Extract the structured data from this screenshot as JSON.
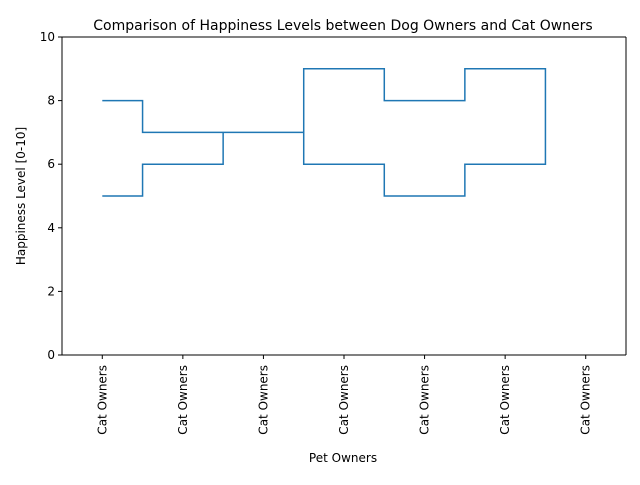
{
  "chart_data": {
    "type": "line",
    "drawstyle": "steps-mid",
    "title": "Comparison of Happiness Levels between Dog Owners and Cat Owners",
    "xlabel": "Pet Owners",
    "ylabel": "Happiness Level [0-10]",
    "ylim": [
      0,
      10
    ],
    "yticks": [
      0,
      2,
      4,
      6,
      8,
      10
    ],
    "xtick_labels": [
      "Cat Owners",
      "Cat Owners",
      "Cat Owners",
      "Cat Owners",
      "Cat Owners",
      "Cat Owners",
      "Cat Owners"
    ],
    "xtick_rotation": 90,
    "grid": false,
    "legend": "none",
    "series": [
      {
        "color": "#1f77b4",
        "x": [
          0,
          1,
          2,
          3,
          4,
          5,
          6,
          5,
          4,
          3,
          2,
          1,
          0
        ],
        "values": [
          5,
          6,
          7,
          9,
          8,
          9,
          7,
          6,
          5,
          6,
          7,
          7,
          8
        ]
      }
    ]
  }
}
